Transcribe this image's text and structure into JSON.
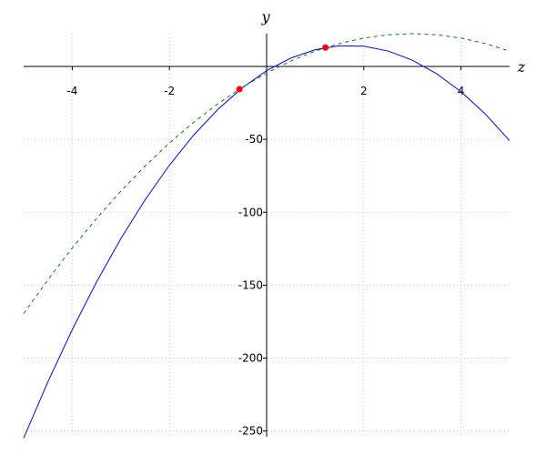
{
  "chart_data": {
    "type": "line",
    "x_label": "z",
    "y_label": "y",
    "x": [
      -5,
      -4.5,
      -4,
      -3.5,
      -3,
      -2.5,
      -2,
      -1.5,
      -1,
      -0.5,
      0,
      0.5,
      1,
      1.5,
      2,
      2.5,
      3,
      3.5,
      4,
      4.5,
      5
    ],
    "series": [
      {
        "color": "#0000ff",
        "style": "solid",
        "values": [
          -254.9,
          -216.2,
          -180.5,
          -147.8,
          -118.1,
          -91.4,
          -67.7,
          -47.0,
          -29.3,
          -14.6,
          -2.9,
          5.8,
          11.5,
          14.2,
          13.9,
          10.6,
          4.3,
          -5.0,
          -17.3,
          -32.6,
          -50.9
        ]
      },
      {
        "color": "#008000",
        "style": "dashed",
        "values": [
          -169.5,
          -146.25,
          -124.5,
          -104.25,
          -85.5,
          -68.25,
          -52.5,
          -38.25,
          -25.5,
          -14.25,
          -4.5,
          3.75,
          10.5,
          15.75,
          19.5,
          21.75,
          22.5,
          21.75,
          19.5,
          15.75,
          10.5
        ]
      },
      {
        "color": "#ff0000",
        "style": "points",
        "x": [
          -0.56,
          1.21
        ],
        "values": [
          -15.6,
          13
        ]
      }
    ],
    "xlim": [
      -5,
      5
    ],
    "ylim": [
      -254,
      22.5
    ],
    "xticks": [
      -4,
      -2,
      2,
      4
    ],
    "yticks": [
      -50,
      -100,
      -150,
      -200,
      -250
    ],
    "grid": true
  }
}
